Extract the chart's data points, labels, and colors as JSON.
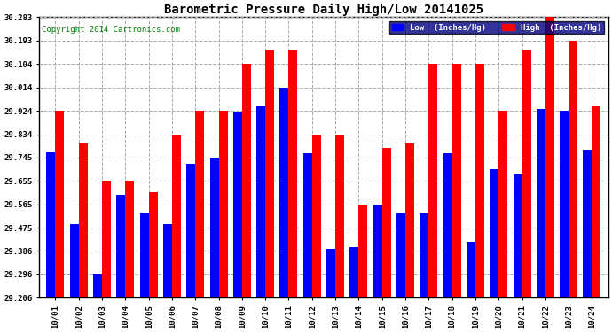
{
  "title": "Barometric Pressure Daily High/Low 20141025",
  "copyright": "Copyright 2014 Cartronics.com",
  "dates": [
    "10/01",
    "10/02",
    "10/03",
    "10/04",
    "10/05",
    "10/06",
    "10/07",
    "10/08",
    "10/09",
    "10/10",
    "10/11",
    "10/12",
    "10/13",
    "10/14",
    "10/15",
    "10/16",
    "10/17",
    "10/18",
    "10/19",
    "10/20",
    "10/21",
    "10/22",
    "10/23",
    "10/24"
  ],
  "low": [
    29.765,
    29.49,
    29.296,
    29.6,
    29.53,
    29.49,
    29.72,
    29.745,
    29.92,
    29.94,
    30.014,
    29.76,
    29.395,
    29.4,
    29.565,
    29.53,
    29.53,
    29.76,
    29.42,
    29.7,
    29.68,
    29.93,
    29.924,
    29.775
  ],
  "high": [
    29.924,
    29.8,
    29.655,
    29.655,
    29.61,
    29.834,
    29.924,
    29.924,
    30.104,
    30.16,
    30.16,
    29.834,
    29.834,
    29.565,
    29.78,
    29.8,
    30.104,
    30.104,
    30.104,
    29.924,
    30.16,
    30.283,
    30.193,
    29.94
  ],
  "ylim_min": 29.206,
  "ylim_max": 30.283,
  "yticks": [
    29.206,
    29.296,
    29.386,
    29.475,
    29.565,
    29.655,
    29.745,
    29.834,
    29.924,
    30.014,
    30.104,
    30.193,
    30.283
  ],
  "bar_width": 0.38,
  "low_color": "#0000ff",
  "high_color": "#ff0000",
  "bg_color": "#ffffff",
  "title_color": "#000000",
  "copyright_color": "#008000",
  "legend_bg": "#000080",
  "legend_text": "#ffffff"
}
